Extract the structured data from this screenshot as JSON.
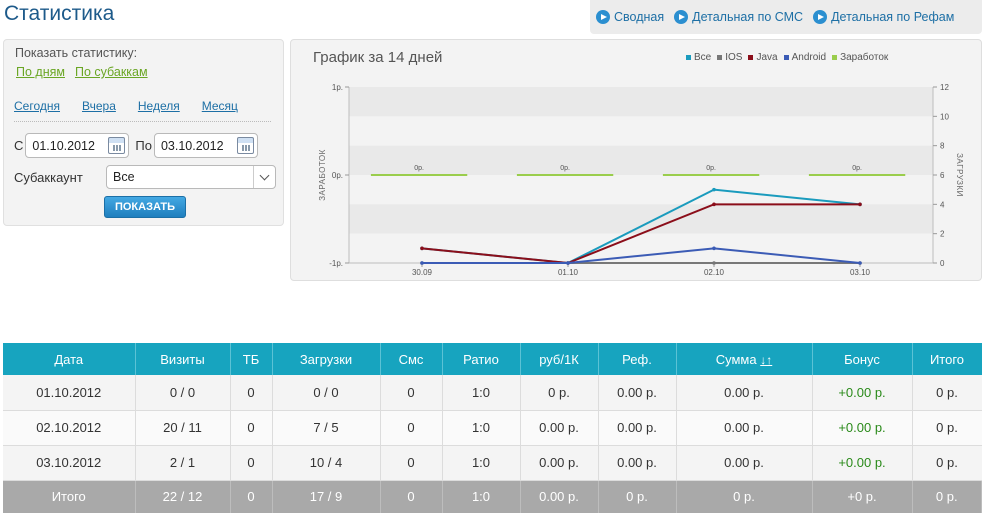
{
  "page": {
    "title": "Статистика"
  },
  "top_nav": [
    {
      "label": "Сводная",
      "icon": "play-circle-icon"
    },
    {
      "label": "Детальная по СМС",
      "icon": "play-circle-icon"
    },
    {
      "label": "Детальная по Рефам",
      "icon": "play-circle-icon"
    }
  ],
  "filter": {
    "caption": "Показать статистику:",
    "modes": [
      "По дням",
      "По субаккам"
    ],
    "periods": [
      "Сегодня",
      "Вчера",
      "Неделя",
      "Месяц"
    ],
    "from_label": "С",
    "from_value": "01.10.2012",
    "to_label": "По",
    "to_value": "03.10.2012",
    "subaccount_label": "Субаккаунт",
    "subaccount_value": "Все",
    "show_button": "ПОКАЗАТЬ"
  },
  "chart_data": {
    "type": "line",
    "title": "График за 14 дней",
    "categories": [
      "30.09",
      "01.10",
      "02.10",
      "03.10"
    ],
    "y_left_ticks": [
      "1р.",
      "0р.",
      "-1р."
    ],
    "y_left_label": "ЗАРАБОТОК",
    "y_right_ticks": [
      "0",
      "2",
      "4",
      "6",
      "8",
      "10",
      "12"
    ],
    "y_right_label": "ЗАГРУЗКИ",
    "y_right_range": [
      0,
      12
    ],
    "y_left_range": [
      -1,
      1
    ],
    "series": [
      {
        "name": "Все",
        "color": "#1a9bbd",
        "axis": "right",
        "values": [
          1,
          0,
          5,
          4
        ]
      },
      {
        "name": "IOS",
        "color": "#777777",
        "axis": "right",
        "values": [
          0,
          0,
          0,
          0
        ]
      },
      {
        "name": "Java",
        "color": "#8b0e1a",
        "axis": "right",
        "values": [
          1,
          0,
          4,
          4
        ]
      },
      {
        "name": "Android",
        "color": "#3b5bb5",
        "axis": "right",
        "values": [
          0,
          0,
          1,
          0
        ]
      },
      {
        "name": "Заработок",
        "color": "#9acd4c",
        "axis": "left",
        "type": "bar",
        "values": [
          0,
          0,
          0,
          0
        ],
        "labels": [
          "0р.",
          "0р.",
          "0р.",
          "0р."
        ]
      }
    ],
    "grid": true,
    "legend_position": "top-right"
  },
  "table": {
    "headers": [
      "Дата",
      "Визиты",
      "ТБ",
      "Загрузки",
      "Смс",
      "Ратио",
      "руб/1К",
      "Реф.",
      "Сумма",
      "Бонус",
      "Итого"
    ],
    "sort_arrows": "↓↑",
    "rows": [
      [
        "01.10.2012",
        "0 / 0",
        "0",
        "0 / 0",
        "0",
        "1:0",
        "0 р.",
        "0.00 р.",
        "0.00 р.",
        "+0.00 р.",
        "0 р."
      ],
      [
        "02.10.2012",
        "20 / 11",
        "0",
        "7 / 5",
        "0",
        "1:0",
        "0.00 р.",
        "0.00 р.",
        "0.00 р.",
        "+0.00 р.",
        "0 р."
      ],
      [
        "03.10.2012",
        "2 / 1",
        "0",
        "10 / 4",
        "0",
        "1:0",
        "0.00 р.",
        "0.00 р.",
        "0.00 р.",
        "+0.00 р.",
        "0 р."
      ]
    ],
    "total": [
      "Итого",
      "22 / 12",
      "0",
      "17 / 9",
      "0",
      "1:0",
      "0.00 р.",
      "0 р.",
      "0 р.",
      "+0 р.",
      "0 р."
    ],
    "colors": {
      "header_bg": "#17a4bf",
      "total_bg": "#a9a9a9",
      "bonus": "#2a8a1a"
    }
  }
}
